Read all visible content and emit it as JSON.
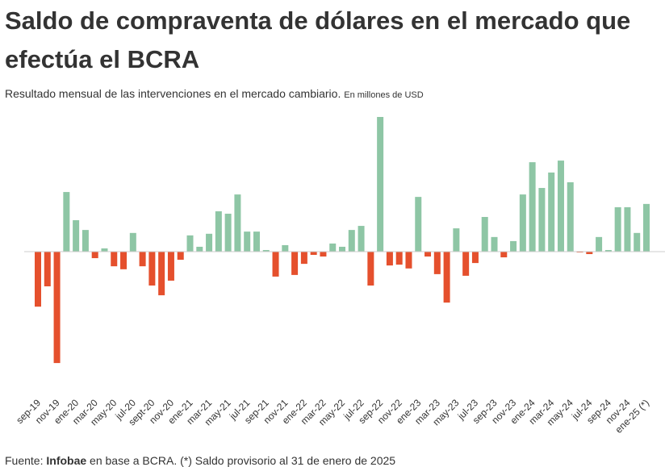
{
  "chart_data": {
    "type": "bar",
    "title": "Saldo de compraventa de dólares en el mercado que efectúa el BCRA",
    "subtitle": "Resultado  mensual de las intervenciones en el mercado cambiario.",
    "unit": "En millones de USD",
    "source_prefix": "Fuente: ",
    "source_name": "Infobae",
    "source_suffix": " en base a BCRA. (*) Saldo provisorio al 31 de enero de 2025",
    "positive_color": "#8ec6a5",
    "negative_color": "#e5502d",
    "categories": [
      "sep-19",
      null,
      "nov-19",
      null,
      "ene-20",
      null,
      "mar-20",
      null,
      "may-20",
      null,
      "jul-20",
      null,
      "sept-20",
      null,
      "nov-20",
      null,
      "ene-21",
      null,
      "mar-21",
      null,
      "may-21",
      null,
      "jul-21",
      null,
      "sep-21",
      null,
      "nov-21",
      null,
      "ene-22",
      null,
      "mar-22",
      null,
      "may-22",
      null,
      "jul-22",
      null,
      "sep-22",
      null,
      "nov-22",
      null,
      "ene-23",
      null,
      "mar-23",
      null,
      "may-23",
      null,
      "jul-23",
      null,
      "sep-23",
      null,
      "nov-23",
      null,
      "ene-24",
      null,
      "mar-24",
      null,
      "may-24",
      null,
      "jul-24",
      null,
      "sep-24",
      null,
      "nov-24",
      null,
      "ene-25 (*)"
    ],
    "values": [
      -2030,
      -1280,
      -4110,
      2200,
      1160,
      800,
      -240,
      120,
      -540,
      -650,
      690,
      -540,
      -1250,
      -1610,
      -1070,
      -300,
      600,
      180,
      660,
      1490,
      1400,
      2110,
      740,
      740,
      60,
      -920,
      240,
      -860,
      -450,
      -120,
      -180,
      300,
      180,
      800,
      950,
      -1250,
      4970,
      -510,
      -480,
      -620,
      2020,
      -180,
      -830,
      -1880,
      860,
      -890,
      -420,
      1280,
      540,
      -210,
      390,
      2110,
      3300,
      2350,
      2920,
      3360,
      2560,
      -30,
      -90,
      540,
      60,
      1640,
      1640,
      690,
      1760
    ]
  }
}
